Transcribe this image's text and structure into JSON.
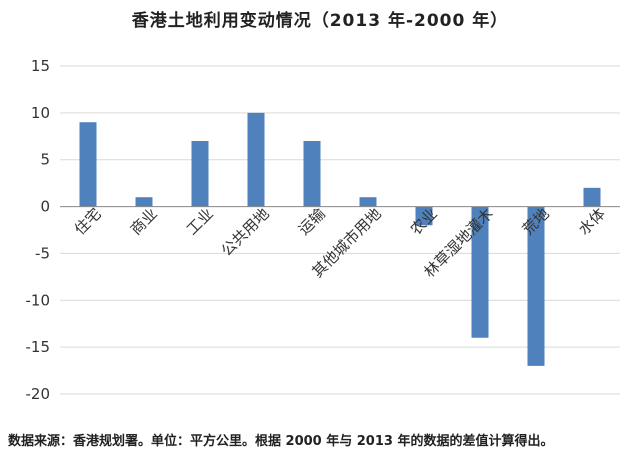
{
  "chart_data": {
    "type": "bar",
    "title": "香港土地利用变动情况（2013 年-2000 年）",
    "source_note": "数据来源：香港规划署。单位：平方公里。根据 2000 年与 2013 年的数据的差值计算得出。",
    "categories": [
      "住宅",
      "商业",
      "工业",
      "公共用地",
      "运输",
      "其他城市用地",
      "农业",
      "林草湿地灌木",
      "荒地",
      "水体"
    ],
    "values": [
      9,
      1,
      7,
      10,
      7,
      1,
      -2,
      -14,
      -17,
      2
    ],
    "ylim": [
      -20,
      15
    ],
    "yticks": [
      -20,
      -15,
      -10,
      -5,
      0,
      5,
      10,
      15
    ],
    "ytick_labels": [
      "-20",
      "-15",
      "-10",
      "-5",
      "0",
      "5",
      "10",
      "15"
    ],
    "xlabel": "",
    "ylabel": "",
    "grid": true,
    "bar_color": "#4f81bd",
    "grid_color": "#d9d9d9"
  }
}
